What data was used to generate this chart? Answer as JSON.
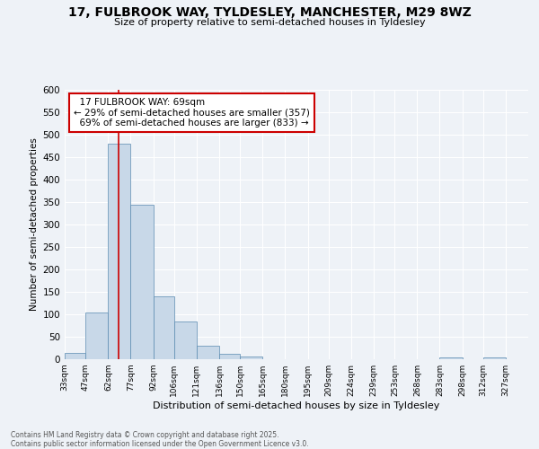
{
  "title_line1": "17, FULBROOK WAY, TYLDESLEY, MANCHESTER, M29 8WZ",
  "title_line2": "Size of property relative to semi-detached houses in Tyldesley",
  "xlabel": "Distribution of semi-detached houses by size in Tyldesley",
  "ylabel": "Number of semi-detached properties",
  "footer_line1": "Contains HM Land Registry data © Crown copyright and database right 2025.",
  "footer_line2": "Contains public sector information licensed under the Open Government Licence v3.0.",
  "annotation_line1": "  17 FULBROOK WAY: 69sqm",
  "annotation_line2": "← 29% of semi-detached houses are smaller (357)",
  "annotation_line3": "  69% of semi-detached houses are larger (833) →",
  "bar_edges": [
    33,
    47,
    62,
    77,
    92,
    106,
    121,
    136,
    150,
    165,
    180,
    195,
    209,
    224,
    239,
    253,
    268,
    283,
    298,
    312,
    327
  ],
  "bar_heights": [
    15,
    105,
    480,
    345,
    140,
    85,
    30,
    12,
    7,
    0,
    0,
    0,
    0,
    0,
    0,
    0,
    0,
    5,
    0,
    5
  ],
  "bar_color": "#c8d8e8",
  "bar_edgecolor": "#5a8ab0",
  "redline_x": 69,
  "ylim": [
    0,
    600
  ],
  "yticks": [
    0,
    50,
    100,
    150,
    200,
    250,
    300,
    350,
    400,
    450,
    500,
    550,
    600
  ],
  "bg_color": "#eef2f7",
  "plot_bg_color": "#eef2f7",
  "grid_color": "#ffffff",
  "annotation_box_facecolor": "#ffffff",
  "annotation_box_edgecolor": "#cc0000",
  "tick_labels": [
    "33sqm",
    "47sqm",
    "62sqm",
    "77sqm",
    "92sqm",
    "106sqm",
    "121sqm",
    "136sqm",
    "150sqm",
    "165sqm",
    "180sqm",
    "195sqm",
    "209sqm",
    "224sqm",
    "239sqm",
    "253sqm",
    "268sqm",
    "283sqm",
    "298sqm",
    "312sqm",
    "327sqm"
  ]
}
